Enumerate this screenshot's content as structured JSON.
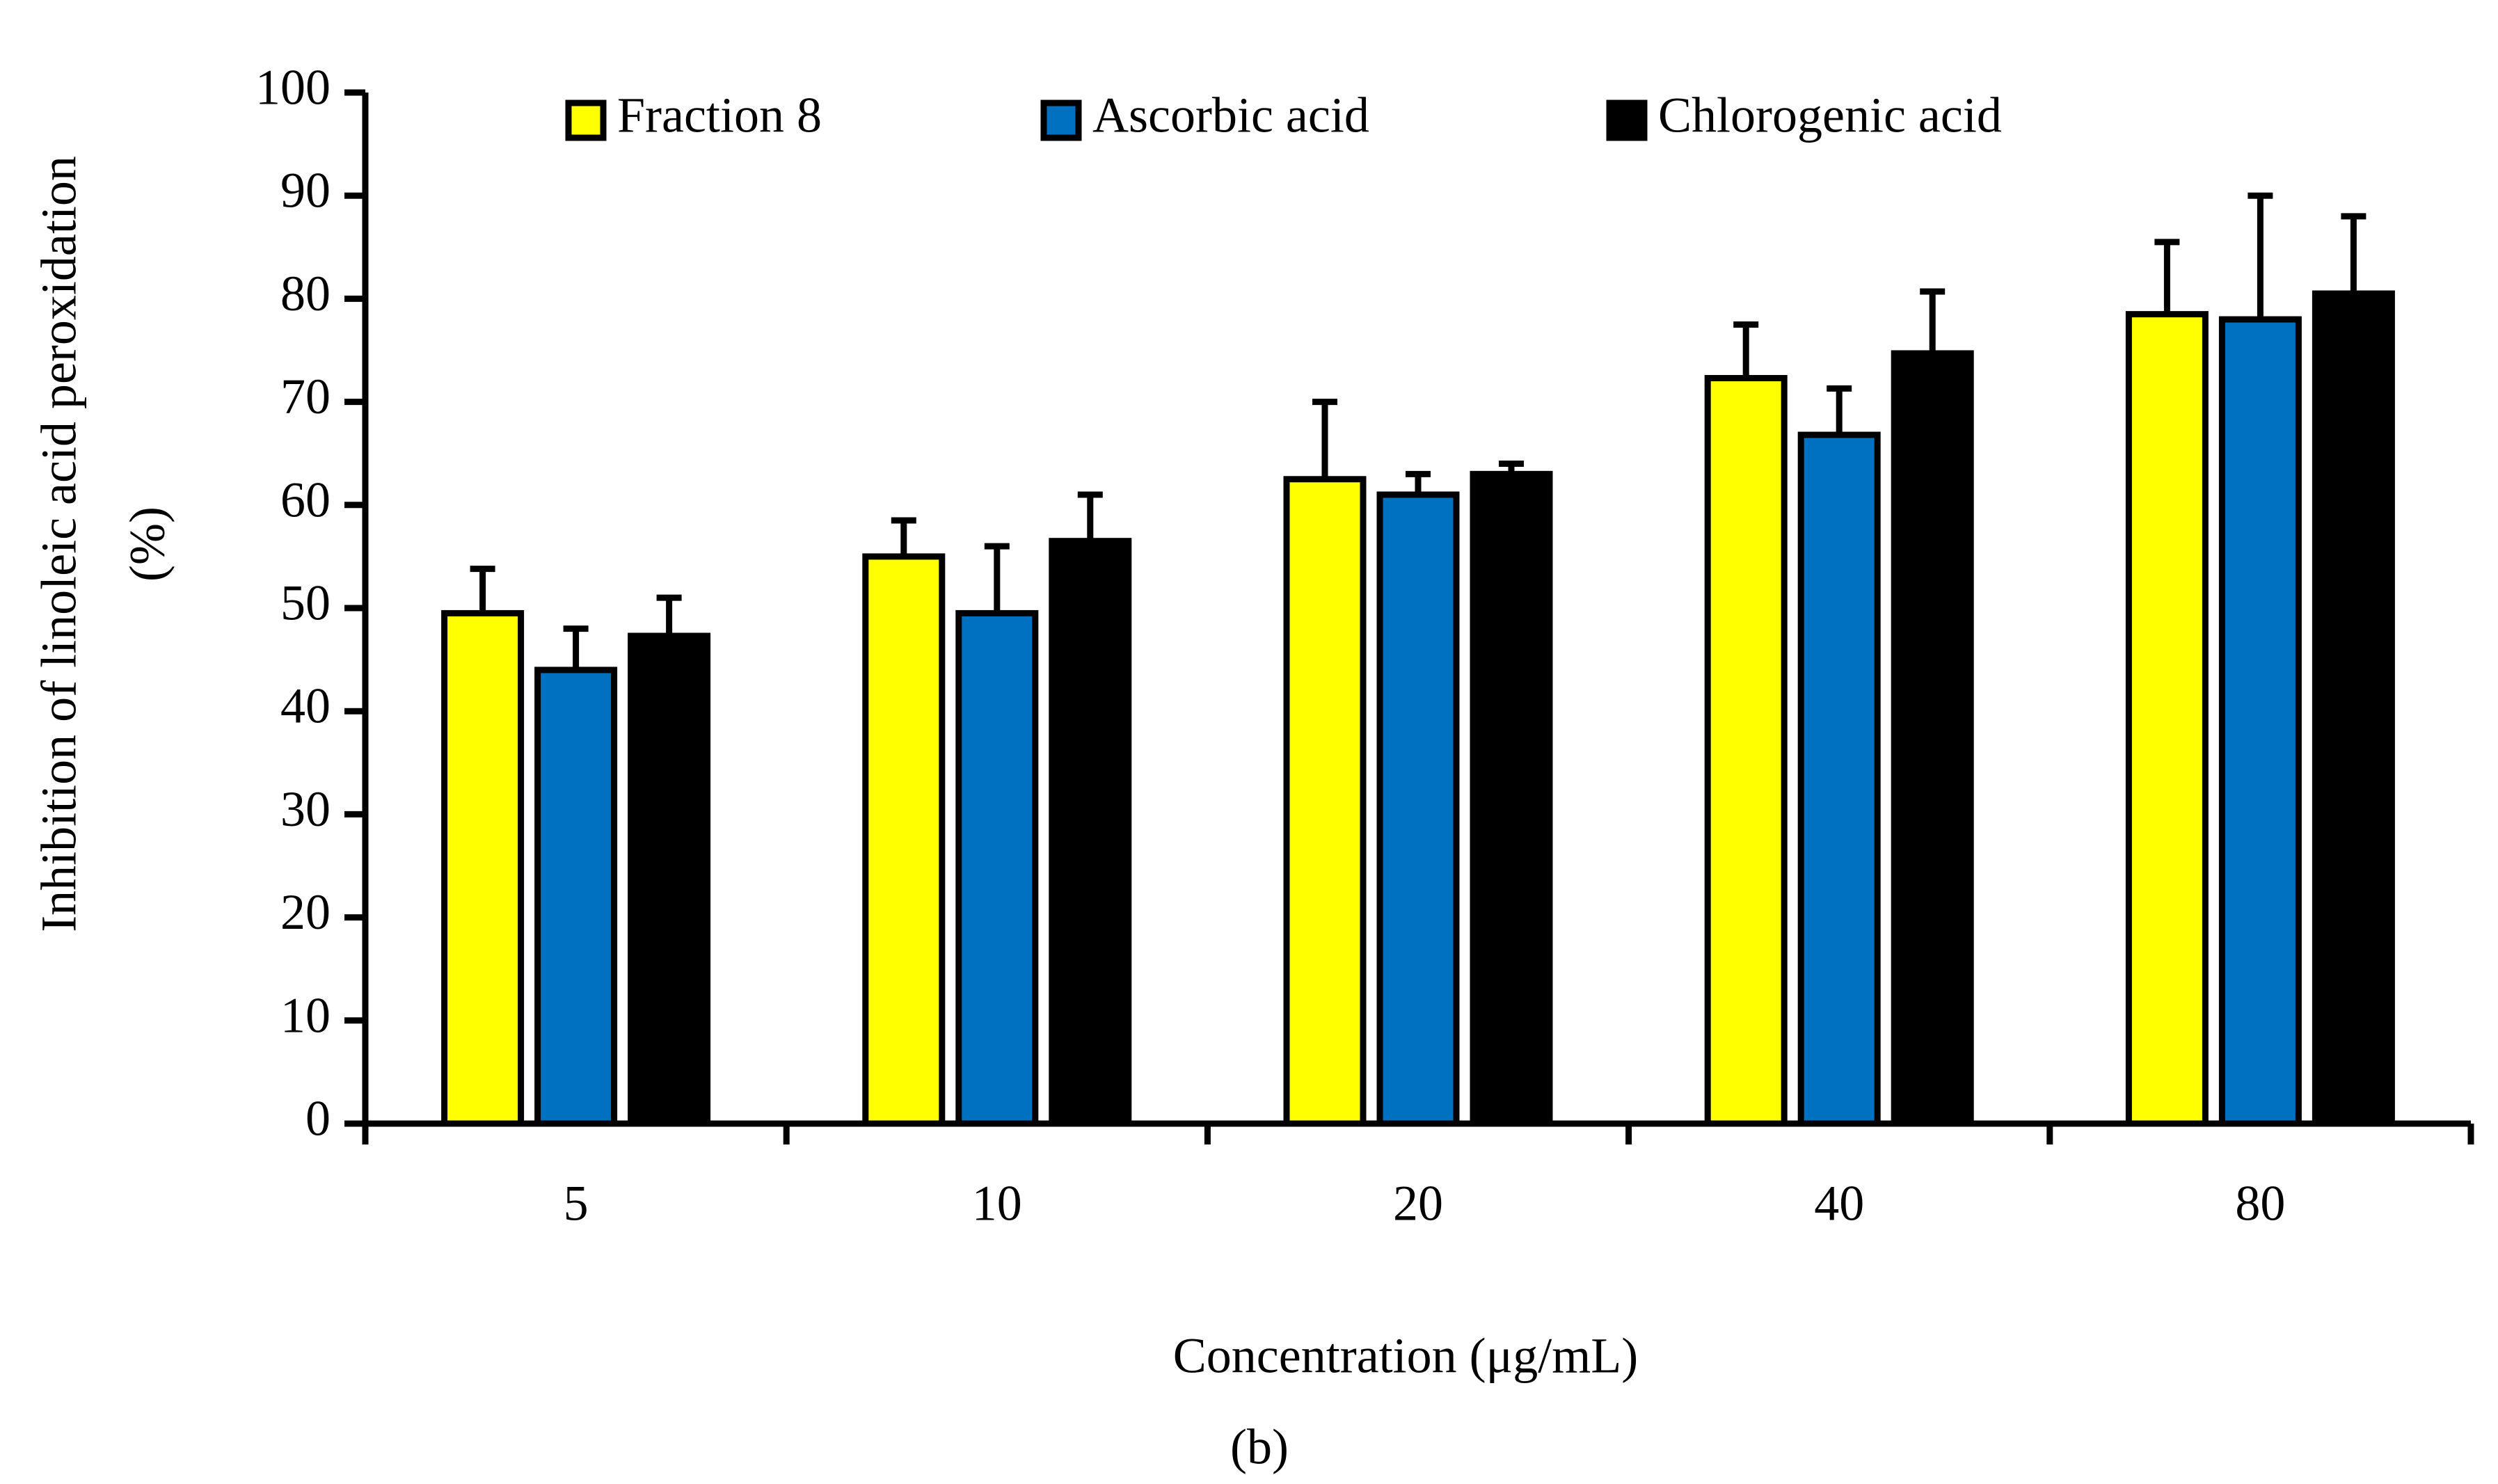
{
  "chart_data": {
    "type": "bar",
    "categories": [
      "5",
      "10",
      "20",
      "40",
      "80"
    ],
    "series": [
      {
        "name": "Fraction 8",
        "color": "#ffff00",
        "values": [
          49.5,
          55,
          62.5,
          72.3,
          78.5
        ],
        "errors": [
          4.3,
          3.5,
          7.5,
          5.2,
          7
        ]
      },
      {
        "name": "Ascorbic acid",
        "color": "#0070c0",
        "values": [
          44,
          49.5,
          61,
          66.8,
          78
        ],
        "errors": [
          4,
          6.5,
          2,
          4.5,
          12
        ]
      },
      {
        "name": "Chlorogenic acid",
        "color": "#000000",
        "values": [
          47.3,
          56.5,
          63,
          74.7,
          80.5
        ],
        "errors": [
          3.7,
          4.5,
          1,
          6,
          7.5
        ]
      }
    ],
    "ylim": [
      0,
      100
    ],
    "yticks": [
      0,
      10,
      20,
      30,
      40,
      50,
      60,
      70,
      80,
      90,
      100
    ],
    "xlabel": "Concentration (μg/mL)",
    "ylabel": [
      "Inhibition of linoleic acid peroxidation",
      "(%)"
    ],
    "caption": "(b)",
    "legend": "top"
  }
}
